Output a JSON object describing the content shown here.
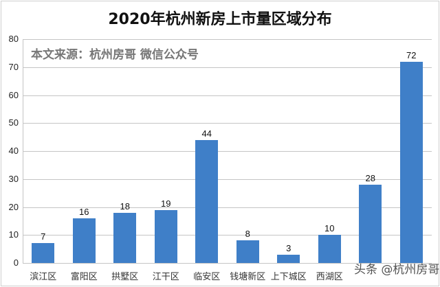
{
  "chart_data": {
    "type": "bar",
    "title": "2020年杭州新房上市量区域分布",
    "annotation": "本文来源：杭州房哥 微信公众号",
    "categories": [
      "滨江区",
      "富阳区",
      "拱墅区",
      "江干区",
      "临安区",
      "钱塘新区",
      "上下城区",
      "西湖区",
      "",
      ""
    ],
    "values": [
      7,
      16,
      18,
      19,
      44,
      8,
      3,
      10,
      28,
      72
    ],
    "xlabel": "",
    "ylabel": "",
    "ylim": [
      0,
      80
    ],
    "yticks": [
      0,
      10,
      20,
      30,
      40,
      50,
      60,
      70,
      80
    ],
    "grid": true,
    "legend": null,
    "bar_color": "#3f7fc8"
  },
  "watermark": "头条 @杭州房哥"
}
